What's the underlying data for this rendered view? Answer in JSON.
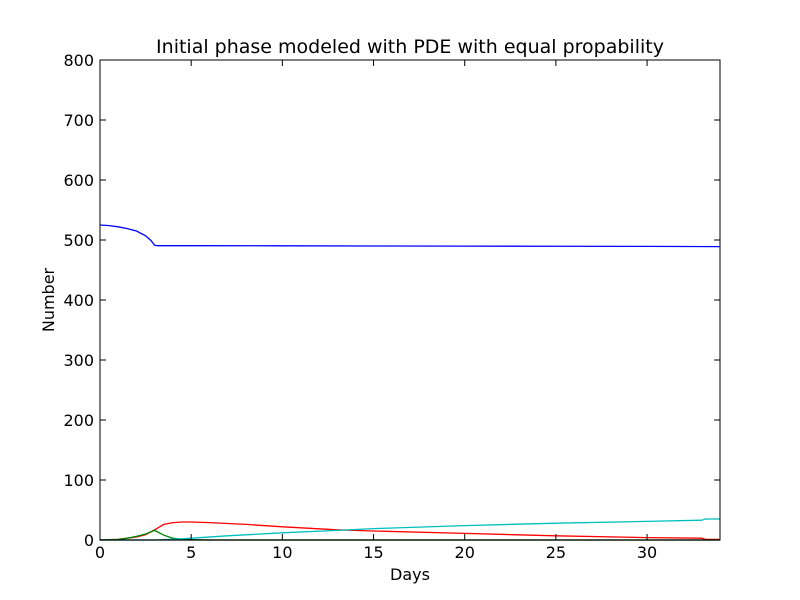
{
  "chart_data": {
    "type": "line",
    "title": "Initial phase modeled with PDE with equal propability",
    "xlabel": "Days",
    "ylabel": "Number",
    "xlim": [
      0,
      34
    ],
    "ylim": [
      0,
      800
    ],
    "xticks": [
      0,
      5,
      10,
      15,
      20,
      25,
      30
    ],
    "yticks": [
      0,
      100,
      200,
      300,
      400,
      500,
      600,
      700,
      800
    ],
    "grid": false,
    "series": [
      {
        "color": "#0000ff",
        "x": [
          0,
          0.5,
          1,
          1.5,
          2,
          2.5,
          2.8,
          3,
          3.2,
          5,
          10,
          15,
          20,
          25,
          30,
          34
        ],
        "y": [
          525,
          524,
          522,
          519,
          515,
          507,
          499,
          491,
          490.5,
          490.5,
          490.3,
          490,
          489.8,
          489.6,
          489.4,
          489
        ]
      },
      {
        "color": "#ff0000",
        "x": [
          0,
          0.5,
          1,
          1.5,
          2,
          2.5,
          3,
          3.5,
          4,
          4.5,
          5,
          6,
          8,
          10,
          13,
          15,
          20,
          25,
          30,
          33,
          33.2,
          34
        ],
        "y": [
          0,
          0.5,
          1,
          3,
          5,
          9,
          17,
          26,
          29,
          30,
          30,
          29,
          26,
          22,
          17,
          15,
          11,
          7,
          4,
          3,
          1,
          1
        ]
      },
      {
        "color": "#008000",
        "x": [
          0,
          0.5,
          1,
          1.5,
          2,
          2.5,
          3,
          3.5,
          4,
          4.5,
          5,
          6,
          10,
          20,
          34
        ],
        "y": [
          0,
          0.5,
          1,
          3,
          6,
          10,
          16,
          8,
          3,
          1,
          0.5,
          0,
          0,
          0,
          0
        ]
      },
      {
        "color": "#00bfbf",
        "x": [
          0,
          3,
          4.5,
          5,
          7,
          10,
          13,
          15,
          20,
          25,
          30,
          33,
          33.2,
          34
        ],
        "y": [
          0,
          0,
          2,
          3,
          7,
          12,
          16,
          19,
          24,
          28,
          31,
          33,
          35,
          35
        ]
      },
      {
        "color": "#000000",
        "x": [
          0,
          34
        ],
        "y": [
          0,
          0
        ]
      }
    ]
  }
}
